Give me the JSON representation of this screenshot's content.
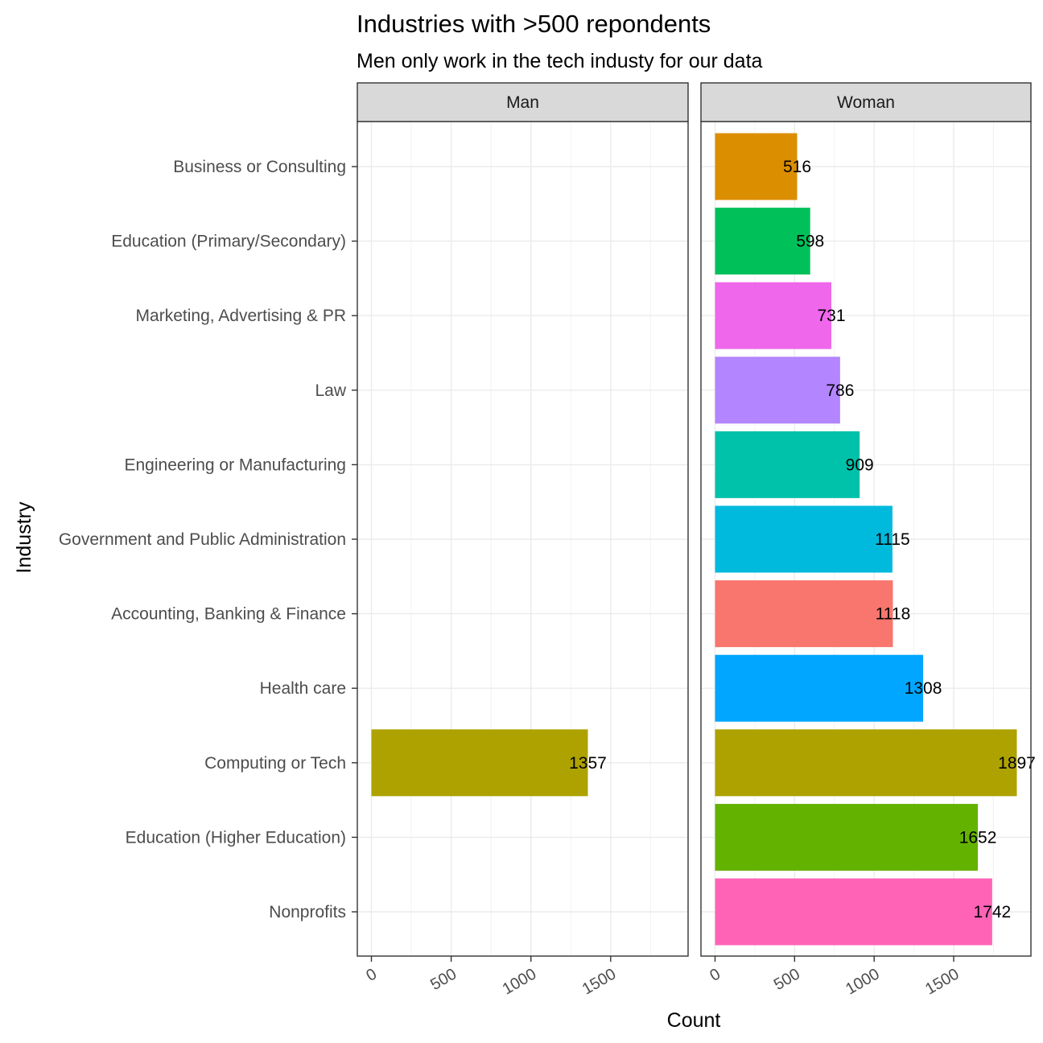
{
  "chart_data": {
    "type": "bar",
    "orientation": "horizontal",
    "title": "Industries with >500 repondents",
    "subtitle": "Men only work in the tech industy for our data",
    "xlabel": "Count",
    "ylabel": "Industry",
    "xlim": [
      0,
      1897
    ],
    "x_ticks": [
      "0",
      "500",
      "1000",
      "1500"
    ],
    "grid": true,
    "legend": "none",
    "categories": [
      "Business or Consulting",
      "Education (Primary/Secondary)",
      "Marketing, Advertising & PR",
      "Law",
      "Engineering or Manufacturing",
      "Government and Public Administration",
      "Accounting, Banking & Finance",
      "Health care",
      "Computing or Tech",
      "Education (Higher Education)",
      "Nonprofits"
    ],
    "category_colors": [
      "#DB8E00",
      "#00C05A",
      "#EF67EB",
      "#B385FF",
      "#00C1A9",
      "#00BADE",
      "#F8766D",
      "#00A6FF",
      "#AEA200",
      "#64B200",
      "#FF63B6"
    ],
    "facets": [
      {
        "label": "Man",
        "values": [
          null,
          null,
          null,
          null,
          null,
          null,
          null,
          null,
          1357,
          null,
          null
        ]
      },
      {
        "label": "Woman",
        "values": [
          516,
          598,
          731,
          786,
          909,
          1115,
          1118,
          1308,
          1897,
          1652,
          1742
        ]
      }
    ]
  }
}
